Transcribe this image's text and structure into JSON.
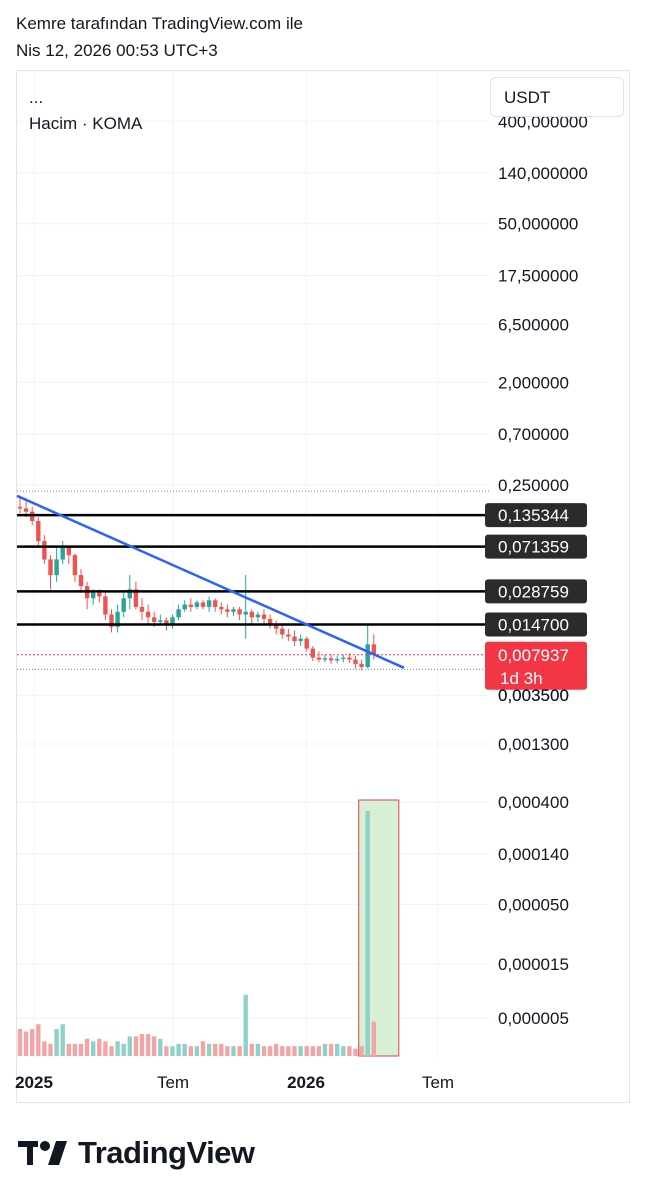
{
  "header": {
    "line1": "Kemre tarafından TradingView.com ile",
    "line2": "Nis 12, 2026 00:53 UTC+3"
  },
  "legend": {
    "dots": "...",
    "volume": "Hacim · KOMA"
  },
  "currency": "USDT",
  "brand": "TradingView",
  "colors": {
    "up": "#26a69a",
    "down": "#ef5350",
    "up_volume": "#8fd1c9",
    "down_volume": "#f2a5a4",
    "trendline": "#2962ff",
    "level_line": "#000000",
    "current_price_badge": "#f23645",
    "label_badge": "#2b2b2b",
    "highlight_fill": "#d6efd5",
    "highlight_border": "#d9474a"
  },
  "chart_data": {
    "type": "candlestick",
    "timeframe": "weekly",
    "y_scale": "log",
    "price_tick_labels": [
      "400,000000",
      "140,000000",
      "50,000000",
      "17,500000",
      "6,500000",
      "2,000000",
      "0,700000",
      "0,250000",
      "0,003500",
      "0,001300",
      "0,000400",
      "0,000140",
      "0,000050",
      "0,000015",
      "0,000005"
    ],
    "x_tick_labels": [
      {
        "label": "2025",
        "bold": true
      },
      {
        "label": "Tem",
        "bold": false
      },
      {
        "label": "2026",
        "bold": true
      },
      {
        "label": "Tem",
        "bold": false
      }
    ],
    "horizontal_levels": [
      {
        "label": "0,135344",
        "value": 0.135344
      },
      {
        "label": "0,071359",
        "value": 0.071359
      },
      {
        "label": "0,028759",
        "value": 0.028759
      },
      {
        "label": "0,014700",
        "value": 0.0147
      }
    ],
    "current_price": {
      "label": "0,007937",
      "value": 0.007937,
      "countdown": "1d 3h"
    },
    "overlapped_label": "0,003500",
    "trendline": {
      "from": {
        "date": "2024-12",
        "price": 0.2
      },
      "to": {
        "date": "2026-05",
        "price": 0.0061
      }
    },
    "candles": [
      {
        "o": 0.16,
        "h": 0.2,
        "c": 0.155,
        "l": 0.14
      },
      {
        "o": 0.155,
        "h": 0.19,
        "c": 0.145,
        "l": 0.13
      },
      {
        "o": 0.145,
        "h": 0.16,
        "c": 0.12,
        "l": 0.11
      },
      {
        "o": 0.12,
        "h": 0.13,
        "c": 0.08,
        "l": 0.07
      },
      {
        "o": 0.08,
        "h": 0.09,
        "c": 0.055,
        "l": 0.05
      },
      {
        "o": 0.055,
        "h": 0.06,
        "c": 0.04,
        "l": 0.03
      },
      {
        "o": 0.04,
        "h": 0.07,
        "c": 0.055,
        "l": 0.035
      },
      {
        "o": 0.055,
        "h": 0.08,
        "c": 0.07,
        "l": 0.05
      },
      {
        "o": 0.07,
        "h": 0.072,
        "c": 0.06,
        "l": 0.05
      },
      {
        "o": 0.06,
        "h": 0.062,
        "c": 0.04,
        "l": 0.035
      },
      {
        "o": 0.04,
        "h": 0.045,
        "c": 0.032,
        "l": 0.028
      },
      {
        "o": 0.032,
        "h": 0.035,
        "c": 0.025,
        "l": 0.02
      },
      {
        "o": 0.025,
        "h": 0.03,
        "c": 0.028,
        "l": 0.022
      },
      {
        "o": 0.028,
        "h": 0.03,
        "c": 0.026,
        "l": 0.023
      },
      {
        "o": 0.026,
        "h": 0.028,
        "c": 0.018,
        "l": 0.016
      },
      {
        "o": 0.018,
        "h": 0.02,
        "c": 0.014,
        "l": 0.0125
      },
      {
        "o": 0.014,
        "h": 0.022,
        "c": 0.019,
        "l": 0.0125
      },
      {
        "o": 0.019,
        "h": 0.028,
        "c": 0.025,
        "l": 0.017
      },
      {
        "o": 0.025,
        "h": 0.04,
        "c": 0.03,
        "l": 0.02
      },
      {
        "o": 0.03,
        "h": 0.035,
        "c": 0.021,
        "l": 0.02
      },
      {
        "o": 0.021,
        "h": 0.025,
        "c": 0.019,
        "l": 0.016
      },
      {
        "o": 0.019,
        "h": 0.022,
        "c": 0.017,
        "l": 0.015
      },
      {
        "o": 0.017,
        "h": 0.019,
        "c": 0.0155,
        "l": 0.014
      },
      {
        "o": 0.0155,
        "h": 0.018,
        "c": 0.016,
        "l": 0.0145
      },
      {
        "o": 0.016,
        "h": 0.017,
        "c": 0.0145,
        "l": 0.013
      },
      {
        "o": 0.0145,
        "h": 0.018,
        "c": 0.017,
        "l": 0.0135
      },
      {
        "o": 0.017,
        "h": 0.022,
        "c": 0.02,
        "l": 0.016
      },
      {
        "o": 0.02,
        "h": 0.024,
        "c": 0.022,
        "l": 0.019
      },
      {
        "o": 0.022,
        "h": 0.025,
        "c": 0.021,
        "l": 0.019
      },
      {
        "o": 0.021,
        "h": 0.024,
        "c": 0.023,
        "l": 0.02
      },
      {
        "o": 0.023,
        "h": 0.024,
        "c": 0.021,
        "l": 0.02
      },
      {
        "o": 0.021,
        "h": 0.026,
        "c": 0.024,
        "l": 0.019
      },
      {
        "o": 0.024,
        "h": 0.025,
        "c": 0.021,
        "l": 0.019
      },
      {
        "o": 0.021,
        "h": 0.023,
        "c": 0.02,
        "l": 0.018
      },
      {
        "o": 0.02,
        "h": 0.022,
        "c": 0.019,
        "l": 0.017
      },
      {
        "o": 0.019,
        "h": 0.021,
        "c": 0.02,
        "l": 0.0175
      },
      {
        "o": 0.02,
        "h": 0.021,
        "c": 0.018,
        "l": 0.016
      },
      {
        "o": 0.018,
        "h": 0.04,
        "c": 0.019,
        "l": 0.011
      },
      {
        "o": 0.019,
        "h": 0.02,
        "c": 0.017,
        "l": 0.015
      },
      {
        "o": 0.017,
        "h": 0.019,
        "c": 0.018,
        "l": 0.0155
      },
      {
        "o": 0.018,
        "h": 0.02,
        "c": 0.0165,
        "l": 0.015
      },
      {
        "o": 0.0165,
        "h": 0.018,
        "c": 0.015,
        "l": 0.0135
      },
      {
        "o": 0.015,
        "h": 0.016,
        "c": 0.0135,
        "l": 0.012
      },
      {
        "o": 0.0135,
        "h": 0.015,
        "c": 0.012,
        "l": 0.011
      },
      {
        "o": 0.012,
        "h": 0.0135,
        "c": 0.0115,
        "l": 0.0105
      },
      {
        "o": 0.0115,
        "h": 0.013,
        "c": 0.0105,
        "l": 0.0095
      },
      {
        "o": 0.0105,
        "h": 0.012,
        "c": 0.011,
        "l": 0.0095
      },
      {
        "o": 0.011,
        "h": 0.0115,
        "c": 0.009,
        "l": 0.0085
      },
      {
        "o": 0.009,
        "h": 0.0095,
        "c": 0.0075,
        "l": 0.007
      },
      {
        "o": 0.0075,
        "h": 0.0085,
        "c": 0.0072,
        "l": 0.0068
      },
      {
        "o": 0.0072,
        "h": 0.008,
        "c": 0.0074,
        "l": 0.0068
      },
      {
        "o": 0.0074,
        "h": 0.008,
        "c": 0.0071,
        "l": 0.0066
      },
      {
        "o": 0.0071,
        "h": 0.0078,
        "c": 0.0073,
        "l": 0.0067
      },
      {
        "o": 0.0073,
        "h": 0.008,
        "c": 0.0075,
        "l": 0.0068
      },
      {
        "o": 0.0075,
        "h": 0.0082,
        "c": 0.0072,
        "l": 0.0067
      },
      {
        "o": 0.0072,
        "h": 0.0078,
        "c": 0.0066,
        "l": 0.006
      },
      {
        "o": 0.0066,
        "h": 0.0072,
        "c": 0.0062,
        "l": 0.0058
      },
      {
        "o": 0.0062,
        "h": 0.015,
        "c": 0.0098,
        "l": 0.006
      },
      {
        "o": 0.0098,
        "h": 0.012,
        "c": 0.0079,
        "l": 0.0072
      }
    ],
    "volume_relative": [
      0.11,
      0.1,
      0.11,
      0.13,
      0.06,
      0.05,
      0.11,
      0.13,
      0.05,
      0.05,
      0.05,
      0.07,
      0.06,
      0.07,
      0.06,
      0.04,
      0.06,
      0.05,
      0.08,
      0.08,
      0.09,
      0.09,
      0.08,
      0.07,
      0.04,
      0.04,
      0.05,
      0.05,
      0.04,
      0.04,
      0.06,
      0.05,
      0.05,
      0.05,
      0.04,
      0.04,
      0.04,
      0.25,
      0.05,
      0.05,
      0.04,
      0.04,
      0.05,
      0.04,
      0.04,
      0.04,
      0.04,
      0.04,
      0.04,
      0.04,
      0.05,
      0.05,
      0.05,
      0.04,
      0.04,
      0.03,
      0.04,
      1.0,
      0.14
    ],
    "volume_highlight": {
      "from_candle": 57,
      "to_candle": 58
    }
  }
}
